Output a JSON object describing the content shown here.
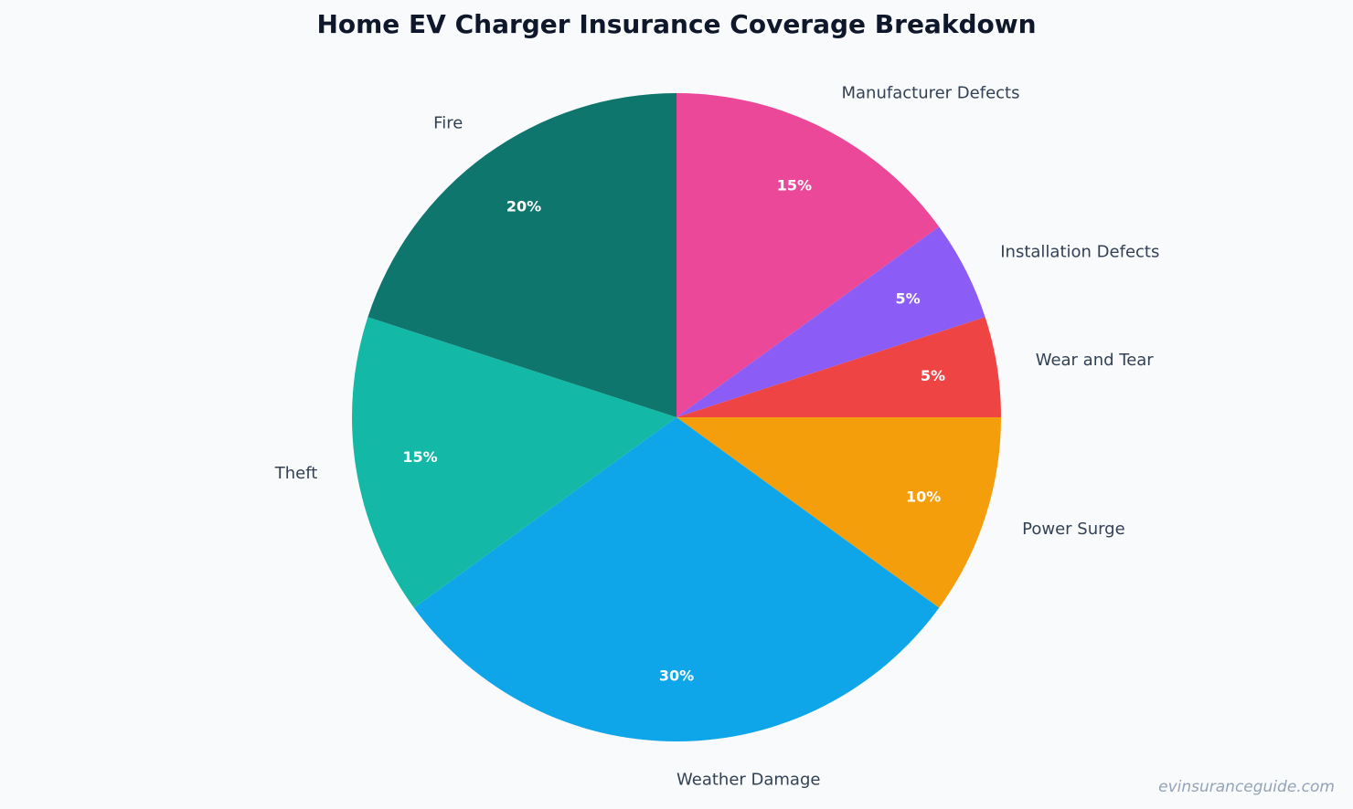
{
  "chart_data": {
    "type": "pie",
    "title": "Home EV Charger Insurance Coverage Breakdown",
    "categories": [
      "Manufacturer Defects",
      "Installation Defects",
      "Wear and Tear",
      "Power Surge",
      "Weather Damage",
      "Theft",
      "Fire"
    ],
    "values": [
      15,
      5,
      5,
      10,
      30,
      15,
      20
    ],
    "value_labels": [
      "15%",
      "5%",
      "5%",
      "10%",
      "30%",
      "15%",
      "20%"
    ],
    "colors": [
      "#ec4899",
      "#8b5cf6",
      "#ef4444",
      "#f59e0b",
      "#0ea5e9",
      "#14b8a6",
      "#0f766e"
    ]
  },
  "watermark": "evinsuranceguide.com"
}
